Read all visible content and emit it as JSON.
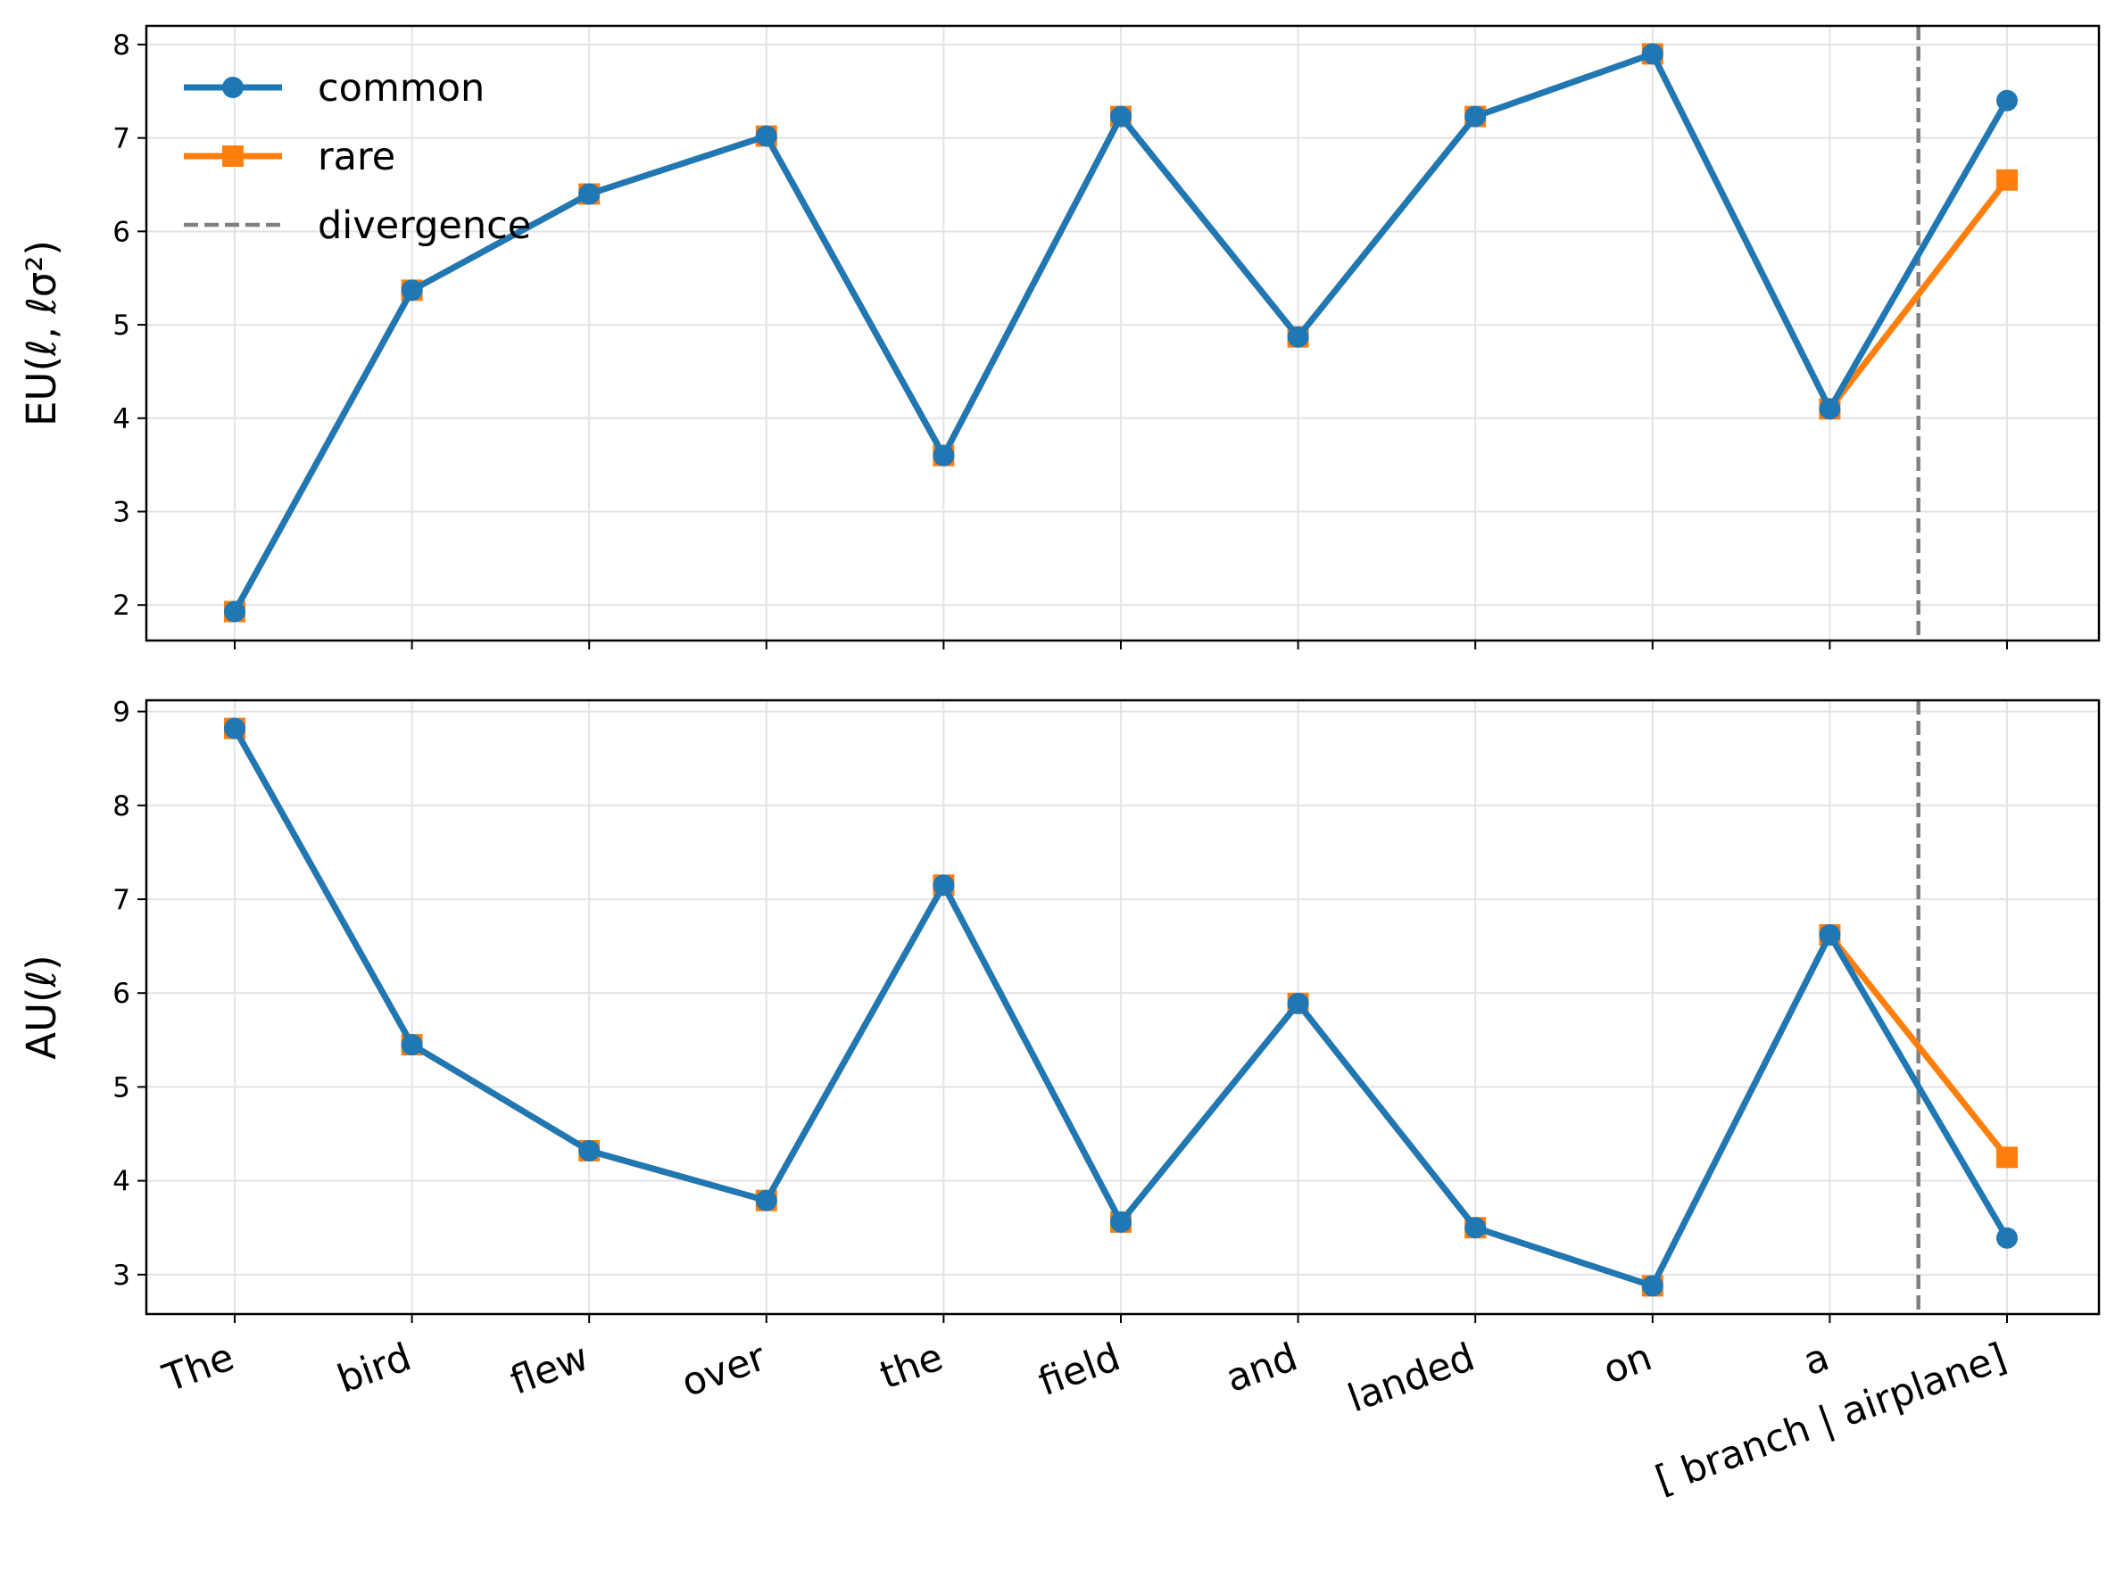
{
  "chart_data": {
    "type": "line",
    "categories": [
      "The",
      "bird",
      "flew",
      "over",
      "the",
      "field",
      "and",
      "landed",
      "on",
      "a",
      "[ branch |  airplane]"
    ],
    "legend": {
      "placement": "upper-left",
      "entries": [
        {
          "label": "common",
          "color": "#1f77b4",
          "marker": "circle",
          "style": "solid"
        },
        {
          "label": "rare",
          "color": "#ff7f0e",
          "marker": "square",
          "style": "solid"
        },
        {
          "label": "divergence",
          "color": "#808080",
          "marker": "none",
          "style": "dashed"
        }
      ]
    },
    "divergence_x": 9.5,
    "grid": true,
    "panels": [
      {
        "ylabel": "EU(ℓ, ℓσ²)",
        "ylim": [
          1.62,
          8.2
        ],
        "yticks": [
          2,
          3,
          4,
          5,
          6,
          7,
          8
        ],
        "show_xticklabels": false,
        "series": [
          {
            "name": "common",
            "color": "#1f77b4",
            "marker": "circle",
            "values": [
              1.93,
              5.37,
              6.4,
              7.02,
              3.6,
              7.23,
              4.87,
              7.23,
              7.9,
              4.1,
              7.4
            ]
          },
          {
            "name": "rare",
            "color": "#ff7f0e",
            "marker": "square",
            "values": [
              1.93,
              5.37,
              6.4,
              7.02,
              3.6,
              7.23,
              4.87,
              7.23,
              7.9,
              4.1,
              6.55
            ]
          }
        ]
      },
      {
        "ylabel": "AU(ℓ)",
        "ylim": [
          2.58,
          9.12
        ],
        "yticks": [
          3,
          4,
          5,
          6,
          7,
          8,
          9
        ],
        "show_xticklabels": true,
        "series": [
          {
            "name": "common",
            "color": "#1f77b4",
            "marker": "circle",
            "values": [
              8.82,
              5.45,
              4.32,
              3.79,
              7.15,
              3.56,
              5.89,
              3.5,
              2.88,
              6.62,
              3.39
            ]
          },
          {
            "name": "rare",
            "color": "#ff7f0e",
            "marker": "square",
            "values": [
              8.82,
              5.45,
              4.32,
              3.79,
              7.15,
              3.56,
              5.89,
              3.5,
              2.88,
              6.62,
              4.25
            ]
          }
        ]
      }
    ]
  }
}
